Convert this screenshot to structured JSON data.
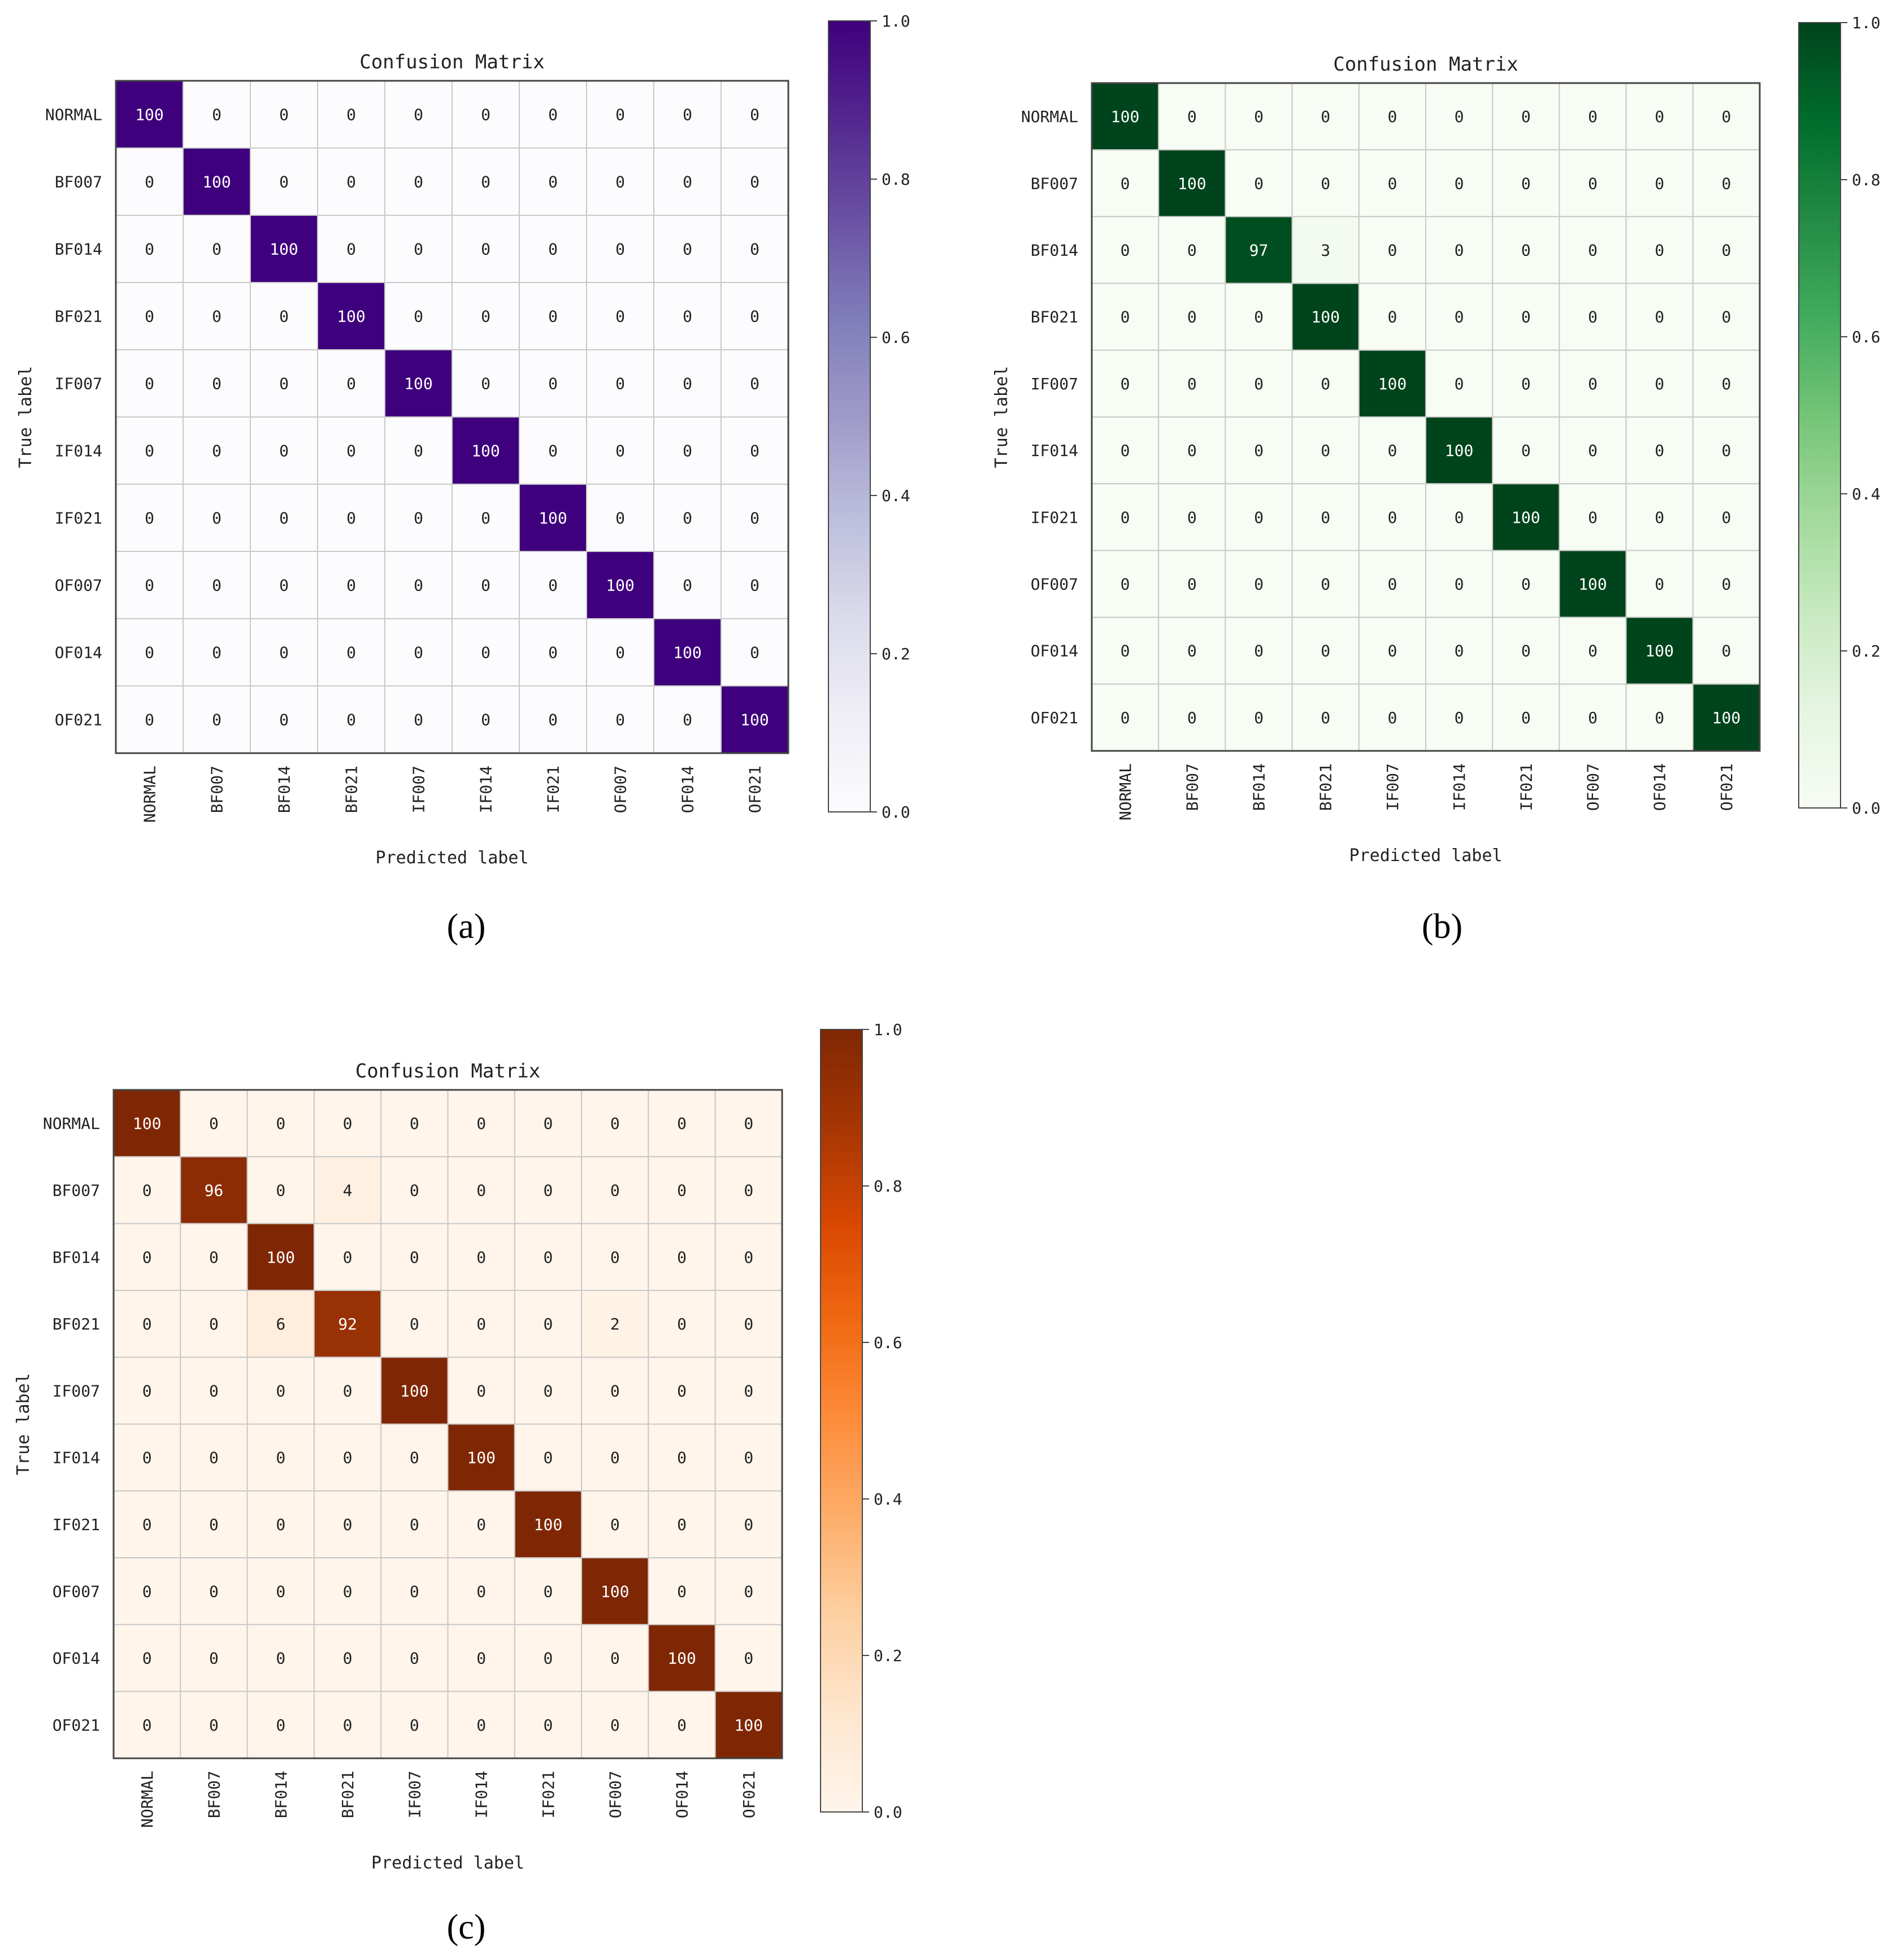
{
  "chart_data": [
    {
      "type": "heatmap",
      "panel_label": "(a)",
      "title": "Confusion Matrix",
      "xlabel": "Predicted label",
      "ylabel": "True label",
      "categories": [
        "NORMAL",
        "BF007",
        "BF014",
        "BF021",
        "IF007",
        "IF014",
        "IF021",
        "OF007",
        "OF014",
        "OF021"
      ],
      "values": [
        [
          100,
          0,
          0,
          0,
          0,
          0,
          0,
          0,
          0,
          0
        ],
        [
          0,
          100,
          0,
          0,
          0,
          0,
          0,
          0,
          0,
          0
        ],
        [
          0,
          0,
          100,
          0,
          0,
          0,
          0,
          0,
          0,
          0
        ],
        [
          0,
          0,
          0,
          100,
          0,
          0,
          0,
          0,
          0,
          0
        ],
        [
          0,
          0,
          0,
          0,
          100,
          0,
          0,
          0,
          0,
          0
        ],
        [
          0,
          0,
          0,
          0,
          0,
          100,
          0,
          0,
          0,
          0
        ],
        [
          0,
          0,
          0,
          0,
          0,
          0,
          100,
          0,
          0,
          0
        ],
        [
          0,
          0,
          0,
          0,
          0,
          0,
          0,
          100,
          0,
          0
        ],
        [
          0,
          0,
          0,
          0,
          0,
          0,
          0,
          0,
          100,
          0
        ],
        [
          0,
          0,
          0,
          0,
          0,
          0,
          0,
          0,
          0,
          100
        ]
      ],
      "colorbar_ticks": [
        "0.0",
        "0.2",
        "0.4",
        "0.6",
        "0.8",
        "1.0"
      ],
      "colormap": "purples",
      "low_color": "#fcfbfd",
      "high_color": "#3f007d"
    },
    {
      "type": "heatmap",
      "panel_label": "(b)",
      "title": "Confusion Matrix",
      "xlabel": "Predicted label",
      "ylabel": "True label",
      "categories": [
        "NORMAL",
        "BF007",
        "BF014",
        "BF021",
        "IF007",
        "IF014",
        "IF021",
        "OF007",
        "OF014",
        "OF021"
      ],
      "values": [
        [
          100,
          0,
          0,
          0,
          0,
          0,
          0,
          0,
          0,
          0
        ],
        [
          0,
          100,
          0,
          0,
          0,
          0,
          0,
          0,
          0,
          0
        ],
        [
          0,
          0,
          97,
          3,
          0,
          0,
          0,
          0,
          0,
          0
        ],
        [
          0,
          0,
          0,
          100,
          0,
          0,
          0,
          0,
          0,
          0
        ],
        [
          0,
          0,
          0,
          0,
          100,
          0,
          0,
          0,
          0,
          0
        ],
        [
          0,
          0,
          0,
          0,
          0,
          100,
          0,
          0,
          0,
          0
        ],
        [
          0,
          0,
          0,
          0,
          0,
          0,
          100,
          0,
          0,
          0
        ],
        [
          0,
          0,
          0,
          0,
          0,
          0,
          0,
          100,
          0,
          0
        ],
        [
          0,
          0,
          0,
          0,
          0,
          0,
          0,
          0,
          100,
          0
        ],
        [
          0,
          0,
          0,
          0,
          0,
          0,
          0,
          0,
          0,
          100
        ]
      ],
      "colorbar_ticks": [
        "0.0",
        "0.2",
        "0.4",
        "0.6",
        "0.8",
        "1.0"
      ],
      "colormap": "greens",
      "low_color": "#f7fcf5",
      "high_color": "#00441b"
    },
    {
      "type": "heatmap",
      "panel_label": "(c)",
      "title": "Confusion Matrix",
      "xlabel": "Predicted label",
      "ylabel": "True label",
      "categories": [
        "NORMAL",
        "BF007",
        "BF014",
        "BF021",
        "IF007",
        "IF014",
        "IF021",
        "OF007",
        "OF014",
        "OF021"
      ],
      "values": [
        [
          100,
          0,
          0,
          0,
          0,
          0,
          0,
          0,
          0,
          0
        ],
        [
          0,
          96,
          0,
          4,
          0,
          0,
          0,
          0,
          0,
          0
        ],
        [
          0,
          0,
          100,
          0,
          0,
          0,
          0,
          0,
          0,
          0
        ],
        [
          0,
          0,
          6,
          92,
          0,
          0,
          0,
          2,
          0,
          0
        ],
        [
          0,
          0,
          0,
          0,
          100,
          0,
          0,
          0,
          0,
          0
        ],
        [
          0,
          0,
          0,
          0,
          0,
          100,
          0,
          0,
          0,
          0
        ],
        [
          0,
          0,
          0,
          0,
          0,
          0,
          100,
          0,
          0,
          0
        ],
        [
          0,
          0,
          0,
          0,
          0,
          0,
          0,
          100,
          0,
          0
        ],
        [
          0,
          0,
          0,
          0,
          0,
          0,
          0,
          0,
          100,
          0
        ],
        [
          0,
          0,
          0,
          0,
          0,
          0,
          0,
          0,
          0,
          100
        ]
      ],
      "colorbar_ticks": [
        "0.0",
        "0.2",
        "0.4",
        "0.6",
        "0.8",
        "1.0"
      ],
      "colormap": "oranges",
      "low_color": "#fff5eb",
      "high_color": "#7f2704"
    }
  ]
}
